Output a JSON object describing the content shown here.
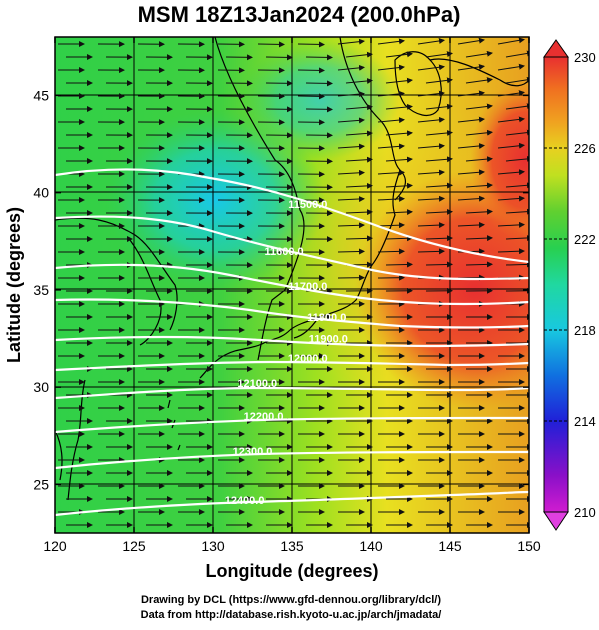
{
  "title": "MSM 18Z13Jan2024 (200.0hPa)",
  "x_axis": {
    "label": "Longitude (degrees)",
    "range": [
      120,
      150
    ],
    "ticks": [
      "120",
      "125",
      "130",
      "135",
      "140",
      "145",
      "150"
    ]
  },
  "y_axis": {
    "label": "Latitude  (degrees)",
    "range": [
      22.5,
      48
    ],
    "ticks": [
      "25",
      "30",
      "35",
      "40",
      "45"
    ]
  },
  "colorbar": {
    "range": [
      210,
      230
    ],
    "tick_labels": [
      "230",
      "226",
      "222",
      "218",
      "214",
      "210"
    ],
    "colors": [
      "#d01cd0",
      "#8a10c8",
      "#2020d8",
      "#1070e0",
      "#18c8e0",
      "#20d8a0",
      "#28d050",
      "#50d030",
      "#a0e020",
      "#e0e020",
      "#f0b020",
      "#f07020",
      "#e83030"
    ]
  },
  "contours": {
    "labels": [
      {
        "text": "11500.0",
        "lon": 136.0,
        "lat": 39.2
      },
      {
        "text": "11600.0",
        "lon": 134.5,
        "lat": 36.8
      },
      {
        "text": "11700.0",
        "lon": 136.0,
        "lat": 35.0
      },
      {
        "text": "11800.0",
        "lon": 137.2,
        "lat": 33.4
      },
      {
        "text": "11900.0",
        "lon": 137.3,
        "lat": 32.3
      },
      {
        "text": "12000.0",
        "lon": 136.0,
        "lat": 31.3
      },
      {
        "text": "12100.0",
        "lon": 132.8,
        "lat": 30.0
      },
      {
        "text": "12200.0",
        "lon": 133.2,
        "lat": 28.3
      },
      {
        "text": "12300.0",
        "lon": 132.5,
        "lat": 26.5
      },
      {
        "text": "12400.0",
        "lon": 132.0,
        "lat": 24.0
      }
    ]
  },
  "credits": {
    "line1": "Drawing by DCL (https://www.gfd-dennou.org/library/dcl/)",
    "line2": "Data from http://database.rish.kyoto-u.ac.jp/arch/jmadata/"
  }
}
